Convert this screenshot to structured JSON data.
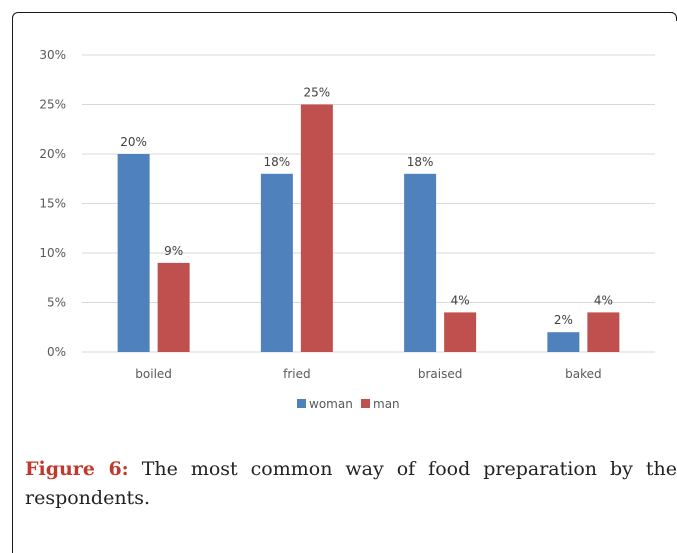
{
  "chart_data": {
    "type": "bar",
    "categories": [
      "boiled",
      "fried",
      "braised",
      "baked"
    ],
    "series": [
      {
        "name": "woman",
        "values": [
          20,
          18,
          18,
          2
        ],
        "labels": [
          "20%",
          "18%",
          "18%",
          "2%"
        ],
        "color": "#4f81bd"
      },
      {
        "name": "man",
        "values": [
          9,
          25,
          4,
          4
        ],
        "labels": [
          "9%",
          "25%",
          "4%",
          "4%"
        ],
        "color": "#c0504d"
      }
    ],
    "ylim": [
      0,
      30
    ],
    "yticks": [
      {
        "value": 0,
        "label": "0%"
      },
      {
        "value": 5,
        "label": "5%"
      },
      {
        "value": 10,
        "label": "10%"
      },
      {
        "value": 15,
        "label": "15%"
      },
      {
        "value": 20,
        "label": "20%"
      },
      {
        "value": 25,
        "label": "25%"
      },
      {
        "value": 30,
        "label": "30%"
      }
    ],
    "grid": true,
    "legend_position": "bottom",
    "gridline_color": "#d9d9d9"
  },
  "caption": {
    "label": "Figure 6:",
    "text": "The most common way of food preparation by the respondents."
  }
}
